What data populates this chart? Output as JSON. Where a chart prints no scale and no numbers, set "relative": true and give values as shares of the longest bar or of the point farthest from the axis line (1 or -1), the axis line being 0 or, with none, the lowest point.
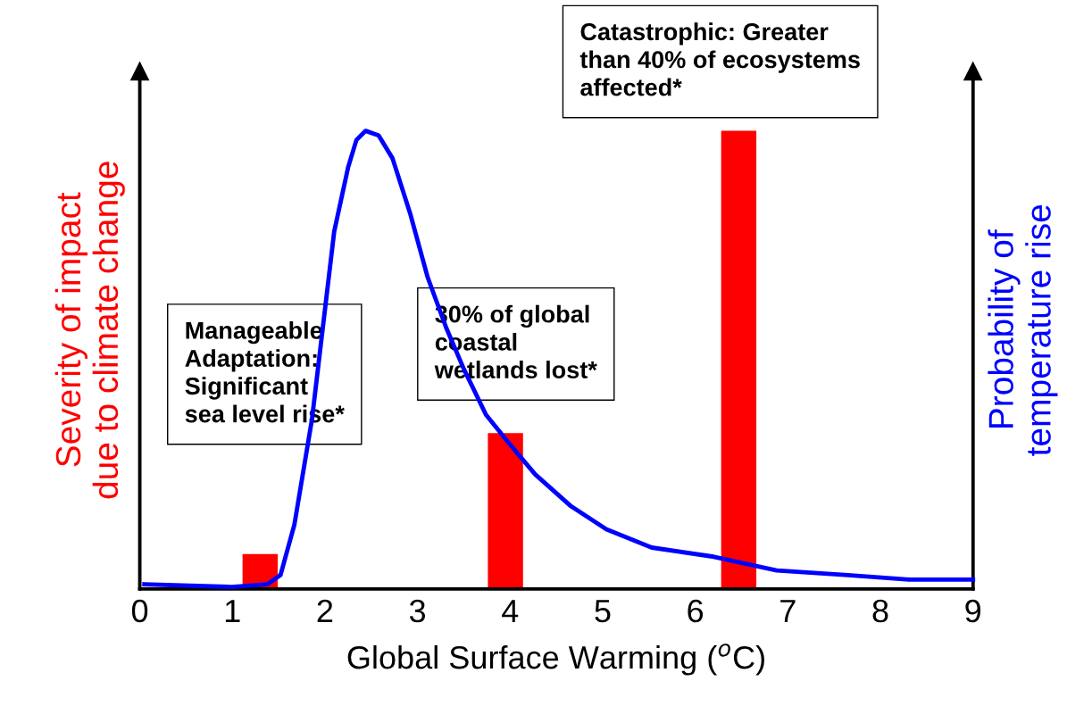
{
  "chart_data": {
    "type": "bar",
    "relative": true,
    "xlabel": "Global Surface Warming ($^{o}$C)",
    "ylabel": "Severity of impact\ndue to climate change",
    "y2label": "Probability of\ntemperature rise",
    "xlim": [
      0,
      9
    ],
    "xticks": [
      0,
      1,
      2,
      3,
      4,
      5,
      6,
      7,
      8,
      9
    ],
    "grid": false,
    "marker": "none",
    "line_style": "solid",
    "annotations": [
      "Manageable\nAdaptation:\nSignificant\nsea level rise*",
      "30% of global\ncoastal\nwetlands lost*",
      "Catastrophic: Greater\nthan 40% of ecosystems\naffected*"
    ],
    "series": [
      {
        "color": "#ff0000",
        "x": [
          1.3,
          3.95,
          6.47
        ],
        "values": [
          0.076,
          0.34,
          1.0
        ]
      },
      {
        "type": "line",
        "axis": "y2",
        "color": "#0000ff",
        "x": [
          0.05,
          0.99,
          1.38,
          1.52,
          1.67,
          1.86,
          2.1,
          2.25,
          2.34,
          2.44,
          2.58,
          2.73,
          2.92,
          3.11,
          3.31,
          3.5,
          3.74,
          3.98,
          4.27,
          4.66,
          5.04,
          5.53,
          6.2,
          6.88,
          7.65,
          8.32,
          9.0
        ],
        "values": [
          0.01,
          0.004,
          0.01,
          0.03,
          0.14,
          0.37,
          0.78,
          0.92,
          0.98,
          1.0,
          0.99,
          0.94,
          0.82,
          0.68,
          0.57,
          0.48,
          0.38,
          0.32,
          0.25,
          0.18,
          0.13,
          0.09,
          0.07,
          0.04,
          0.03,
          0.02,
          0.02
        ]
      }
    ]
  }
}
